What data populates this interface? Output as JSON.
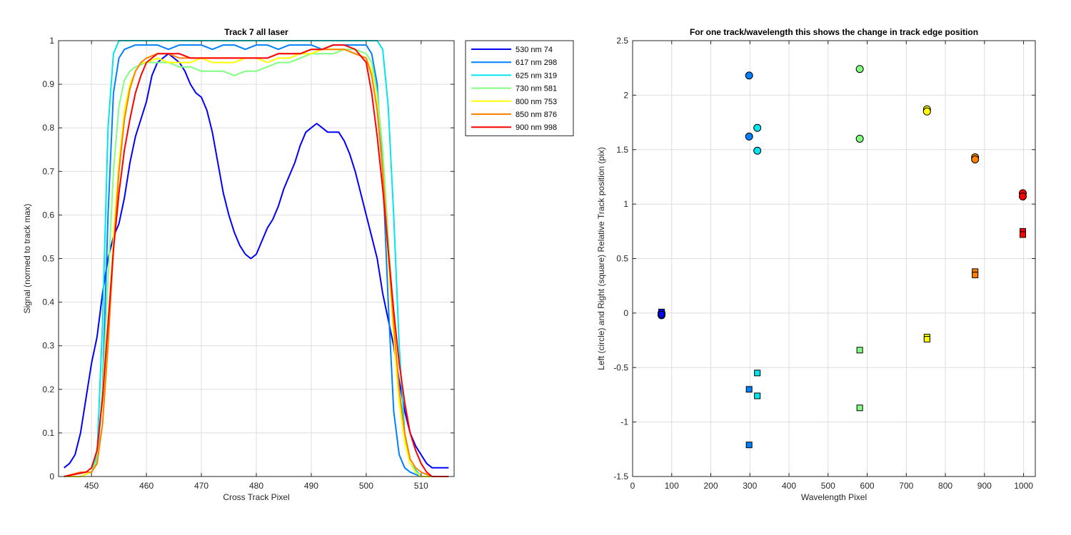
{
  "chart_data": [
    {
      "type": "line",
      "title": "Track 7  all laser",
      "xlabel": "Cross Track Pixel",
      "ylabel": "Signal (normed to track max)",
      "xlim": [
        444,
        516
      ],
      "ylim": [
        0,
        1
      ],
      "xticks": [
        "450",
        "460",
        "470",
        "480",
        "490",
        "500",
        "510"
      ],
      "yticks": [
        "0",
        "0.1",
        "0.2",
        "0.3",
        "0.4",
        "0.5",
        "0.6",
        "0.7",
        "0.8",
        "0.9",
        "1"
      ],
      "grid": true,
      "legend_position": "outside-right",
      "series": [
        {
          "name": "530 nm 74",
          "color": "#0000ff",
          "x": [
            445,
            446,
            447,
            448,
            449,
            450,
            451,
            452,
            453,
            454,
            455,
            456,
            457,
            458,
            459,
            460,
            461,
            462,
            463,
            464,
            465,
            466,
            467,
            468,
            469,
            470,
            471,
            472,
            473,
            474,
            475,
            476,
            477,
            478,
            479,
            480,
            481,
            482,
            483,
            484,
            485,
            486,
            487,
            488,
            489,
            490,
            491,
            492,
            493,
            494,
            495,
            496,
            497,
            498,
            499,
            500,
            501,
            502,
            503,
            504,
            505,
            506,
            507,
            508,
            509,
            510,
            511,
            512,
            513,
            514,
            515
          ],
          "y": [
            0.02,
            0.03,
            0.05,
            0.1,
            0.18,
            0.26,
            0.32,
            0.42,
            0.5,
            0.55,
            0.58,
            0.64,
            0.72,
            0.78,
            0.82,
            0.86,
            0.92,
            0.95,
            0.96,
            0.97,
            0.96,
            0.95,
            0.93,
            0.9,
            0.88,
            0.87,
            0.84,
            0.79,
            0.72,
            0.65,
            0.6,
            0.56,
            0.53,
            0.51,
            0.5,
            0.51,
            0.54,
            0.57,
            0.59,
            0.62,
            0.66,
            0.69,
            0.72,
            0.76,
            0.79,
            0.8,
            0.81,
            0.8,
            0.79,
            0.79,
            0.79,
            0.77,
            0.74,
            0.7,
            0.65,
            0.6,
            0.55,
            0.5,
            0.42,
            0.36,
            0.3,
            0.22,
            0.15,
            0.1,
            0.07,
            0.05,
            0.03,
            0.02,
            0.02,
            0.02,
            0.02
          ]
        },
        {
          "name": "617 nm 298",
          "color": "#0080ff",
          "x": [
            445,
            448,
            450,
            451,
            452,
            453,
            454,
            455,
            456,
            458,
            460,
            462,
            464,
            466,
            468,
            470,
            472,
            474,
            476,
            478,
            480,
            482,
            484,
            486,
            488,
            490,
            492,
            494,
            496,
            498,
            500,
            501,
            502,
            503,
            504,
            505,
            506,
            507,
            508,
            510,
            512,
            515
          ],
          "y": [
            0,
            0,
            0.01,
            0.03,
            0.2,
            0.6,
            0.88,
            0.96,
            0.98,
            0.99,
            0.99,
            0.99,
            0.98,
            0.99,
            0.99,
            0.99,
            0.98,
            0.99,
            0.99,
            0.98,
            0.99,
            0.99,
            0.98,
            0.99,
            0.99,
            0.99,
            0.98,
            0.99,
            0.99,
            0.99,
            0.99,
            0.97,
            0.9,
            0.7,
            0.4,
            0.15,
            0.05,
            0.02,
            0.01,
            0,
            0,
            0
          ]
        },
        {
          "name": "625 nm 319",
          "color": "#00e5ee",
          "x": [
            445,
            448,
            450,
            451,
            452,
            453,
            454,
            455,
            456,
            458,
            460,
            465,
            470,
            475,
            480,
            485,
            490,
            495,
            500,
            502,
            503,
            504,
            505,
            506,
            507,
            508,
            510,
            512,
            515
          ],
          "y": [
            0,
            0,
            0.01,
            0.05,
            0.35,
            0.8,
            0.97,
            1,
            1,
            1,
            1,
            1,
            1,
            1,
            1,
            1,
            1,
            1,
            1,
            1,
            0.98,
            0.85,
            0.6,
            0.3,
            0.1,
            0.03,
            0,
            0,
            0
          ]
        },
        {
          "name": "730 nm 581",
          "color": "#80ff80",
          "x": [
            445,
            448,
            450,
            451,
            452,
            453,
            454,
            455,
            456,
            457,
            458,
            460,
            462,
            464,
            466,
            468,
            470,
            472,
            474,
            476,
            478,
            480,
            482,
            484,
            486,
            488,
            490,
            492,
            494,
            496,
            498,
            500,
            501,
            502,
            503,
            504,
            505,
            506,
            507,
            508,
            509,
            510,
            512,
            515
          ],
          "y": [
            0,
            0,
            0.01,
            0.04,
            0.2,
            0.45,
            0.7,
            0.85,
            0.91,
            0.93,
            0.94,
            0.95,
            0.95,
            0.95,
            0.94,
            0.94,
            0.93,
            0.93,
            0.93,
            0.92,
            0.93,
            0.93,
            0.94,
            0.95,
            0.95,
            0.96,
            0.97,
            0.97,
            0.97,
            0.98,
            0.98,
            0.97,
            0.95,
            0.88,
            0.75,
            0.55,
            0.35,
            0.18,
            0.08,
            0.03,
            0.01,
            0,
            0,
            0
          ]
        },
        {
          "name": "800 nm 753",
          "color": "#ffff00",
          "x": [
            445,
            448,
            450,
            451,
            452,
            453,
            454,
            455,
            456,
            457,
            458,
            459,
            460,
            462,
            464,
            466,
            468,
            470,
            472,
            474,
            476,
            478,
            480,
            482,
            484,
            486,
            488,
            490,
            492,
            494,
            496,
            498,
            500,
            501,
            502,
            503,
            504,
            505,
            506,
            507,
            508,
            509,
            510,
            512,
            515
          ],
          "y": [
            0,
            0,
            0.01,
            0.03,
            0.12,
            0.32,
            0.55,
            0.72,
            0.84,
            0.9,
            0.93,
            0.95,
            0.95,
            0.96,
            0.95,
            0.95,
            0.95,
            0.96,
            0.95,
            0.95,
            0.95,
            0.96,
            0.96,
            0.95,
            0.96,
            0.96,
            0.97,
            0.97,
            0.98,
            0.98,
            0.98,
            0.97,
            0.96,
            0.93,
            0.85,
            0.7,
            0.5,
            0.32,
            0.17,
            0.08,
            0.03,
            0.01,
            0,
            0,
            0
          ]
        },
        {
          "name": "850 nm 876",
          "color": "#ff8000",
          "x": [
            445,
            448,
            450,
            451,
            452,
            453,
            454,
            455,
            456,
            457,
            458,
            459,
            460,
            462,
            464,
            466,
            468,
            470,
            472,
            474,
            476,
            478,
            480,
            482,
            484,
            486,
            488,
            490,
            492,
            494,
            496,
            498,
            500,
            501,
            502,
            503,
            504,
            505,
            506,
            507,
            508,
            509,
            510,
            512,
            515
          ],
          "y": [
            0,
            0.01,
            0.01,
            0.03,
            0.12,
            0.3,
            0.52,
            0.7,
            0.82,
            0.89,
            0.93,
            0.95,
            0.96,
            0.97,
            0.97,
            0.96,
            0.96,
            0.96,
            0.96,
            0.96,
            0.96,
            0.96,
            0.96,
            0.96,
            0.97,
            0.97,
            0.97,
            0.98,
            0.98,
            0.98,
            0.98,
            0.97,
            0.96,
            0.92,
            0.84,
            0.7,
            0.52,
            0.35,
            0.2,
            0.1,
            0.04,
            0.02,
            0.01,
            0,
            0
          ]
        },
        {
          "name": "900 nm 998",
          "color": "#ff0000",
          "x": [
            445,
            447,
            449,
            450,
            451,
            452,
            453,
            454,
            455,
            456,
            457,
            458,
            459,
            460,
            461,
            462,
            464,
            466,
            468,
            470,
            472,
            474,
            476,
            478,
            480,
            482,
            484,
            486,
            488,
            490,
            492,
            494,
            496,
            498,
            500,
            501,
            502,
            503,
            504,
            505,
            506,
            507,
            508,
            509,
            510,
            511,
            512,
            515
          ],
          "y": [
            0,
            0.005,
            0.01,
            0.02,
            0.06,
            0.18,
            0.35,
            0.52,
            0.65,
            0.75,
            0.82,
            0.88,
            0.92,
            0.95,
            0.96,
            0.97,
            0.97,
            0.97,
            0.96,
            0.96,
            0.96,
            0.96,
            0.96,
            0.96,
            0.96,
            0.96,
            0.97,
            0.97,
            0.97,
            0.98,
            0.98,
            0.99,
            0.99,
            0.98,
            0.95,
            0.88,
            0.78,
            0.66,
            0.52,
            0.38,
            0.26,
            0.17,
            0.1,
            0.06,
            0.03,
            0.01,
            0,
            0
          ]
        }
      ]
    },
    {
      "type": "scatter",
      "title": "For one track/wavelength this shows the change in track edge position",
      "xlabel": "Wavelength Pixel",
      "ylabel": "Left (circle) and Right (square) Relative Track position (pix)",
      "xlim": [
        0,
        1030
      ],
      "ylim": [
        -1.5,
        2.5
      ],
      "xticks": [
        "0",
        "100",
        "200",
        "300",
        "400",
        "500",
        "600",
        "700",
        "800",
        "900",
        "1000"
      ],
      "yticks": [
        "-1.5",
        "-1",
        "-0.5",
        "0",
        "0.5",
        "1",
        "1.5",
        "2",
        "2.5"
      ],
      "grid": true,
      "series": [
        {
          "marker": "circle",
          "color": "#0000ff",
          "x": [
            74,
            74
          ],
          "y": [
            0.0,
            -0.02
          ]
        },
        {
          "marker": "circle",
          "color": "#0080ff",
          "x": [
            298,
            298
          ],
          "y": [
            2.18,
            1.62
          ]
        },
        {
          "marker": "circle",
          "color": "#00e5ee",
          "x": [
            319,
            319
          ],
          "y": [
            1.7,
            1.49
          ]
        },
        {
          "marker": "circle",
          "color": "#80ff80",
          "x": [
            581,
            581
          ],
          "y": [
            2.24,
            1.6
          ]
        },
        {
          "marker": "circle",
          "color": "#ffff00",
          "x": [
            753,
            753
          ],
          "y": [
            1.87,
            1.85
          ]
        },
        {
          "marker": "circle",
          "color": "#ff8000",
          "x": [
            876,
            876
          ],
          "y": [
            1.43,
            1.41
          ]
        },
        {
          "marker": "circle",
          "color": "#ff0000",
          "x": [
            998,
            998
          ],
          "y": [
            1.1,
            1.07
          ]
        },
        {
          "marker": "square",
          "color": "#0000ff",
          "x": [
            74,
            74
          ],
          "y": [
            0.01,
            -0.01
          ]
        },
        {
          "marker": "square",
          "color": "#0080ff",
          "x": [
            298,
            298
          ],
          "y": [
            -0.7,
            -1.21
          ]
        },
        {
          "marker": "square",
          "color": "#00e5ee",
          "x": [
            319,
            319
          ],
          "y": [
            -0.55,
            -0.76
          ]
        },
        {
          "marker": "square",
          "color": "#80ff80",
          "x": [
            581,
            581
          ],
          "y": [
            -0.34,
            -0.87
          ]
        },
        {
          "marker": "square",
          "color": "#ffff00",
          "x": [
            753,
            753
          ],
          "y": [
            -0.22,
            -0.24
          ]
        },
        {
          "marker": "square",
          "color": "#ff8000",
          "x": [
            876,
            876
          ],
          "y": [
            0.38,
            0.35
          ]
        },
        {
          "marker": "square",
          "color": "#ff0000",
          "x": [
            998,
            998
          ],
          "y": [
            0.75,
            0.72
          ]
        }
      ]
    }
  ]
}
